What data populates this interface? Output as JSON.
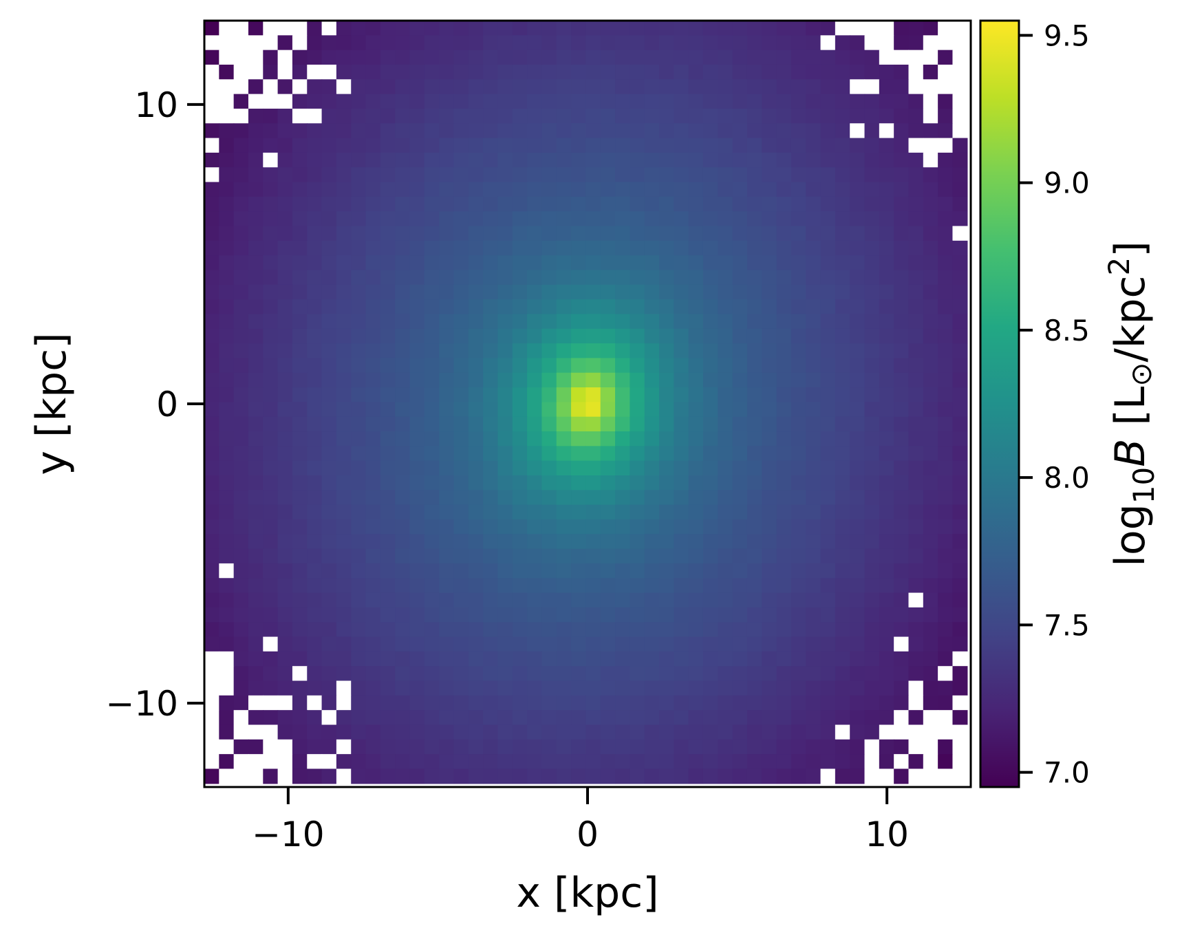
{
  "chart_data": {
    "type": "heatmap",
    "title": "",
    "xlabel": "x [kpc]",
    "ylabel": "y [kpc]",
    "xlim": [
      -12.8,
      12.8
    ],
    "ylim": [
      -12.8,
      12.8
    ],
    "x_ticks": [
      {
        "value": -10,
        "label": "−10"
      },
      {
        "value": 0,
        "label": "0"
      },
      {
        "value": 10,
        "label": "10"
      }
    ],
    "y_ticks": [
      {
        "value": 10,
        "label": "10"
      },
      {
        "value": 0,
        "label": "0"
      },
      {
        "value": -10,
        "label": "−10"
      }
    ],
    "grid": false,
    "bins": {
      "nx": 52,
      "ny": 52,
      "bin_size_kpc": 0.49
    },
    "colormap": "viridis",
    "colorbar": {
      "label_prefix": "log",
      "label_subscript": "10",
      "label_variable": "B",
      "label_open": " [L",
      "label_sun": "⊙",
      "label_mid": "/kpc",
      "label_sup": "2",
      "label_close": "]",
      "range": [
        6.95,
        9.55
      ],
      "ticks": [
        {
          "value": 7.0,
          "label": "7.0"
        },
        {
          "value": 7.5,
          "label": "7.5"
        },
        {
          "value": 8.0,
          "label": "8.0"
        },
        {
          "value": 8.5,
          "label": "8.5"
        },
        {
          "value": 9.0,
          "label": "9.0"
        },
        {
          "value": 9.5,
          "label": "9.5"
        }
      ]
    },
    "peak": {
      "x": 0.0,
      "y": 0.0,
      "value": 9.5
    },
    "empty_bin_color": "#ffffff"
  }
}
